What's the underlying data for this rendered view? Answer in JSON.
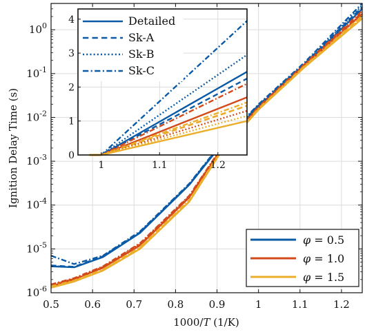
{
  "chart_data": {
    "main": {
      "type": "line",
      "xlabel": "1000/T (1/K)",
      "ylabel": "Ignition Delay Time (s)",
      "xlim": [
        0.5,
        1.25
      ],
      "ylim_log10": [
        -6,
        0.6
      ],
      "log_y": true,
      "grid": true,
      "xticks": [
        "0.5",
        "0.6",
        "0.7",
        "0.8",
        "0.9",
        "1",
        "1.1",
        "1.2"
      ],
      "yticks": [
        "10-6",
        "10-5",
        "10-4",
        "10-3",
        "10-2",
        "10-1",
        "100"
      ],
      "legend_position": "bottom-right",
      "legend": [
        {
          "label": "φ = 0.5",
          "color": "#0a5aa6"
        },
        {
          "label": "φ = 1.0",
          "color": "#d24a1a"
        },
        {
          "label": "φ = 1.5",
          "color": "#ebae2a"
        }
      ],
      "x": [
        0.5,
        0.5556,
        0.625,
        0.7143,
        0.8333,
        0.9091,
        1.0,
        1.1111,
        1.25
      ],
      "series": [
        {
          "mechanism": "Detailed",
          "phi": "0.5",
          "color": "#0a5aa6",
          "dash": "solid",
          "values": [
            4e-06,
            3.8e-06,
            6.5e-06,
            2.3e-05,
            0.00029,
            0.0023,
            0.018,
            0.16,
            3.0
          ]
        },
        {
          "mechanism": "Sk-A",
          "phi": "0.5",
          "color": "#0a5aa6",
          "dash": "dashed",
          "values": [
            4.2e-06,
            3.9e-06,
            6.8e-06,
            2.4e-05,
            0.0003,
            0.0024,
            0.019,
            0.17,
            3.3
          ]
        },
        {
          "mechanism": "Sk-B",
          "phi": "0.5",
          "color": "#0a5aa6",
          "dash": "dotted",
          "values": [
            4.1e-06,
            3.8e-06,
            6.6e-06,
            2.35e-05,
            0.000295,
            0.00235,
            0.0185,
            0.165,
            3.6
          ]
        },
        {
          "mechanism": "Sk-C",
          "phi": "0.5",
          "color": "#0a5aa6",
          "dash": "dashdot",
          "values": [
            7e-06,
            4.5e-06,
            7e-06,
            2.5e-05,
            0.00031,
            0.0025,
            0.02,
            0.18,
            4.0
          ]
        },
        {
          "mechanism": "Detailed",
          "phi": "1.0",
          "color": "#d24a1a",
          "dash": "solid",
          "values": [
            1.4e-06,
            2e-06,
            3.7e-06,
            1.2e-05,
            0.00015,
            0.0018,
            0.016,
            0.15,
            2.3
          ]
        },
        {
          "mechanism": "Sk-A",
          "phi": "1.0",
          "color": "#d24a1a",
          "dash": "dashed",
          "values": [
            1.45e-06,
            2.05e-06,
            3.8e-06,
            1.25e-05,
            0.000155,
            0.00185,
            0.0165,
            0.155,
            2.5
          ]
        },
        {
          "mechanism": "Sk-B",
          "phi": "1.0",
          "color": "#d24a1a",
          "dash": "dotted",
          "values": [
            1.5e-06,
            2.1e-06,
            3.9e-06,
            1.3e-05,
            0.00016,
            0.0019,
            0.017,
            0.16,
            2.4
          ]
        },
        {
          "mechanism": "Sk-C",
          "phi": "1.0",
          "color": "#d24a1a",
          "dash": "dashdot",
          "values": [
            1.55e-06,
            2.15e-06,
            4e-06,
            1.35e-05,
            0.000165,
            0.00195,
            0.0175,
            0.165,
            2.7
          ]
        },
        {
          "mechanism": "Detailed",
          "phi": "1.5",
          "color": "#ebae2a",
          "dash": "solid",
          "values": [
            1.3e-06,
            1.8e-06,
            3.2e-06,
            1e-05,
            0.00012,
            0.0016,
            0.015,
            0.14,
            1.8
          ]
        },
        {
          "mechanism": "Sk-A",
          "phi": "1.5",
          "color": "#ebae2a",
          "dash": "dashed",
          "values": [
            1.35e-06,
            1.85e-06,
            3.3e-06,
            1.05e-05,
            0.000125,
            0.00165,
            0.0155,
            0.145,
            2.0
          ]
        },
        {
          "mechanism": "Sk-B",
          "phi": "1.5",
          "color": "#ebae2a",
          "dash": "dotted",
          "values": [
            1.3e-06,
            1.8e-06,
            3.2e-06,
            1e-05,
            0.00012,
            0.0016,
            0.015,
            0.14,
            1.9
          ]
        },
        {
          "mechanism": "Sk-C",
          "phi": "1.5",
          "color": "#ebae2a",
          "dash": "dashdot",
          "values": [
            1.4e-06,
            1.9e-06,
            3.4e-06,
            1.1e-05,
            0.00013,
            0.0017,
            0.016,
            0.15,
            2.1
          ]
        }
      ]
    },
    "inset": {
      "type": "line",
      "xlim": [
        0.96,
        1.25
      ],
      "ylim": [
        0,
        4.3
      ],
      "grid": true,
      "xticks": [
        "1",
        "1.1",
        "1.2"
      ],
      "yticks": [
        "0",
        "1",
        "2",
        "3",
        "4"
      ],
      "legend_position": "top-left",
      "legend": [
        {
          "label": "Detailed",
          "dash": "solid"
        },
        {
          "label": "Sk-A",
          "dash": "dashed"
        },
        {
          "label": "Sk-B",
          "dash": "dotted"
        },
        {
          "label": "Sk-C",
          "dash": "dashdot"
        }
      ],
      "series": [
        {
          "mechanism": "Sk-C",
          "phi": "0.5",
          "color": "#0a5aa6",
          "dash": "dashdot",
          "x": [
            0.98,
            1.0,
            1.25
          ],
          "values": [
            0,
            0,
            3.95
          ]
        },
        {
          "mechanism": "Sk-B",
          "phi": "0.5",
          "color": "#0a5aa6",
          "dash": "dotted",
          "x": [
            0.98,
            1.0,
            1.25
          ],
          "values": [
            0,
            0,
            2.95
          ]
        },
        {
          "mechanism": "Detailed",
          "phi": "0.5",
          "color": "#0a5aa6",
          "dash": "solid",
          "x": [
            0.98,
            1.0,
            1.25
          ],
          "values": [
            0,
            0,
            2.45
          ]
        },
        {
          "mechanism": "Sk-A",
          "phi": "0.5",
          "color": "#0a5aa6",
          "dash": "dashed",
          "x": [
            0.98,
            1.0,
            1.25
          ],
          "values": [
            0,
            0,
            2.25
          ]
        },
        {
          "mechanism": "Sk-C",
          "phi": "1.0",
          "color": "#d24a1a",
          "dash": "dashdot",
          "x": [
            0.98,
            1.0,
            1.25
          ],
          "values": [
            0,
            0,
            2.1
          ]
        },
        {
          "mechanism": "Detailed",
          "phi": "1.0",
          "color": "#d24a1a",
          "dash": "solid",
          "x": [
            0.98,
            1.0,
            1.25
          ],
          "values": [
            0,
            0,
            1.7
          ]
        },
        {
          "mechanism": "Sk-A",
          "phi": "1.0",
          "color": "#d24a1a",
          "dash": "dashed",
          "x": [
            0.98,
            1.0,
            1.25
          ],
          "values": [
            0,
            0,
            1.45
          ]
        },
        {
          "mechanism": "Sk-C",
          "phi": "1.5",
          "color": "#ebae2a",
          "dash": "dashdot",
          "x": [
            0.98,
            1.0,
            1.25
          ],
          "values": [
            0,
            0,
            1.55
          ]
        },
        {
          "mechanism": "Sk-A",
          "phi": "1.5",
          "color": "#ebae2a",
          "dash": "dashed",
          "x": [
            0.98,
            1.0,
            1.25
          ],
          "values": [
            0,
            0,
            1.45
          ]
        },
        {
          "mechanism": "Sk-B",
          "phi": "1.0",
          "color": "#d24a1a",
          "dash": "dotted",
          "x": [
            0.98,
            1.0,
            1.25
          ],
          "values": [
            0,
            0,
            1.3
          ]
        },
        {
          "mechanism": "Sk-B",
          "phi": "1.5",
          "color": "#ebae2a",
          "dash": "dotted",
          "x": [
            0.98,
            1.0,
            1.25
          ],
          "values": [
            0,
            0,
            1.15
          ]
        },
        {
          "mechanism": "Detailed",
          "phi": "1.5",
          "color": "#ebae2a",
          "dash": "solid",
          "x": [
            0.98,
            1.0,
            1.25
          ],
          "values": [
            0,
            0,
            1.0
          ]
        }
      ]
    }
  }
}
